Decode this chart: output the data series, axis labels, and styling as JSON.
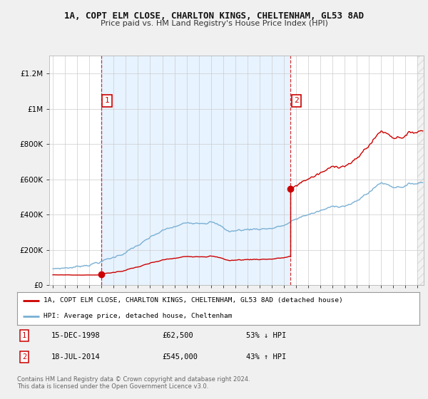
{
  "title": "1A, COPT ELM CLOSE, CHARLTON KINGS, CHELTENHAM, GL53 8AD",
  "subtitle": "Price paid vs. HM Land Registry's House Price Index (HPI)",
  "ylim": [
    0,
    1300000
  ],
  "yticks": [
    0,
    200000,
    400000,
    600000,
    800000,
    1000000,
    1200000
  ],
  "ytick_labels": [
    "£0",
    "£200K",
    "£400K",
    "£600K",
    "£800K",
    "£1M",
    "£1.2M"
  ],
  "xlim_start": 1994.7,
  "xlim_end": 2025.5,
  "sale1_date": 1998.96,
  "sale1_price": 62500,
  "sale1_label": "1",
  "sale2_date": 2014.54,
  "sale2_price": 545000,
  "sale2_label": "2",
  "sale_color": "#cc0000",
  "hpi_color": "#7ab0d4",
  "shade_color": "#ddeeff",
  "legend_property": "1A, COPT ELM CLOSE, CHARLTON KINGS, CHELTENHAM, GL53 8AD (detached house)",
  "legend_hpi": "HPI: Average price, detached house, Cheltenham",
  "note1_label": "1",
  "note1_date": "15-DEC-1998",
  "note1_price": "£62,500",
  "note1_hpi": "53% ↓ HPI",
  "note2_label": "2",
  "note2_date": "18-JUL-2014",
  "note2_price": "£545,000",
  "note2_hpi": "43% ↑ HPI",
  "footer": "Contains HM Land Registry data © Crown copyright and database right 2024.\nThis data is licensed under the Open Government Licence v3.0.",
  "bg_color": "#f0f0f0",
  "plot_bg_color": "#ffffff"
}
